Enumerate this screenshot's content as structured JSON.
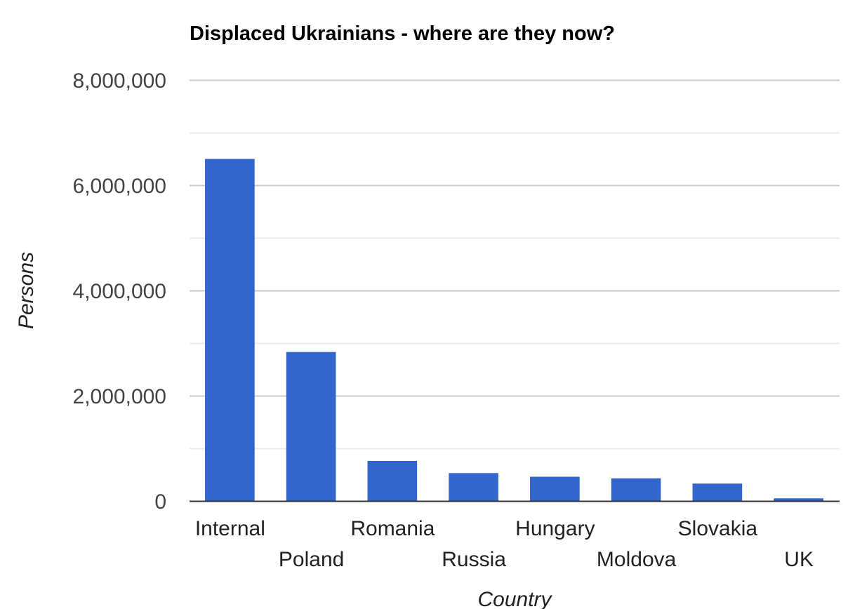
{
  "chart_data": {
    "type": "bar",
    "title": "Displaced Ukrainians - where are they now?",
    "xlabel": "Country",
    "ylabel": "Persons",
    "categories": [
      "Internal",
      "Poland",
      "Romania",
      "Russia",
      "Hungary",
      "Moldova",
      "Slovakia",
      "UK"
    ],
    "values": [
      6500000,
      2830000,
      760000,
      530000,
      460000,
      430000,
      330000,
      50000
    ],
    "ylim": [
      0,
      8000000
    ],
    "yticks": [
      0,
      2000000,
      4000000,
      6000000,
      8000000
    ],
    "ytick_labels": [
      "0",
      "2,000,000",
      "4,000,000",
      "6,000,000",
      "8,000,000"
    ],
    "grid": true,
    "legend": "none",
    "bar_color": "#3366cc"
  }
}
